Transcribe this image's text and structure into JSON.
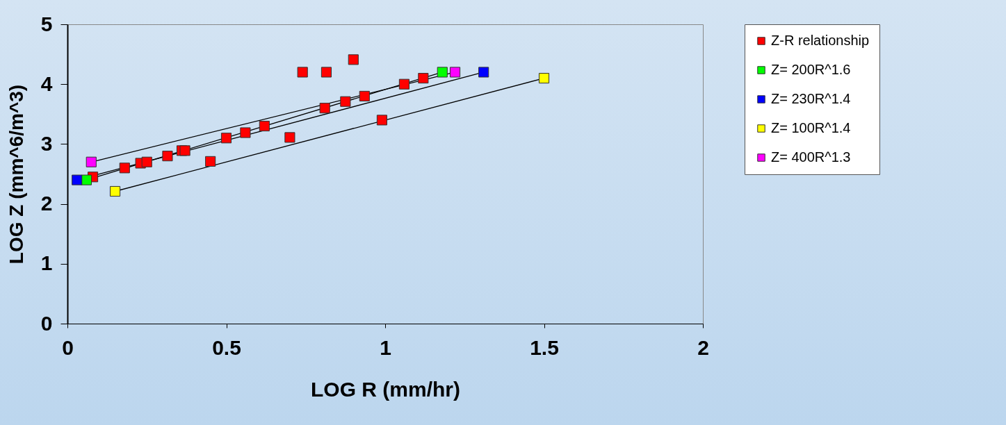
{
  "chart_data": {
    "type": "scatter",
    "xlabel": "LOG R  (mm/hr)",
    "ylabel": "LOG Z (mm^6/m^3)",
    "xlim": [
      0,
      2
    ],
    "xticks": [
      {
        "value": 0,
        "label": "0"
      },
      0.5,
      {
        "value": 1,
        "label": "1"
      },
      1.5,
      {
        "value": 2,
        "label": "2"
      }
    ],
    "ylim": [
      0,
      5
    ],
    "yticks": [
      {
        "value": 0,
        "label": "0"
      },
      {
        "value": 1,
        "label": "1"
      },
      {
        "value": 2,
        "label": "2"
      },
      {
        "value": 3,
        "label": "3"
      },
      {
        "value": 4,
        "label": "4"
      },
      {
        "value": 5,
        "label": "5"
      }
    ],
    "grid": false,
    "legend": "right",
    "marker": "square",
    "series": [
      {
        "name": "Z-R relationship",
        "color": "#ff0000",
        "x": [
          0.08,
          0.18,
          0.23,
          0.25,
          0.315,
          0.36,
          0.37,
          0.45,
          0.5,
          0.56,
          0.62,
          0.7,
          0.74,
          0.81,
          0.815,
          0.875,
          0.9,
          0.935,
          0.99,
          1.06,
          1.12
        ],
        "values": [
          2.45,
          2.6,
          2.68,
          2.7,
          2.8,
          2.89,
          2.89,
          2.71,
          3.1,
          3.19,
          3.3,
          3.11,
          4.2,
          3.6,
          4.2,
          3.71,
          4.41,
          3.8,
          3.4,
          4.0,
          4.1
        ]
      },
      {
        "name": "Z= 200R^1.6",
        "type": "line",
        "color": "#00ff00",
        "x": [
          0.06,
          1.18
        ],
        "values": [
          2.4,
          4.2
        ]
      },
      {
        "name": "Z= 230R^1.4",
        "type": "line",
        "color": "#0000ff",
        "x": [
          0.03,
          1.31
        ],
        "values": [
          2.4,
          4.2
        ]
      },
      {
        "name": "Z= 100R^1.4",
        "type": "line",
        "color": "#ffff00",
        "x": [
          0.15,
          1.5
        ],
        "values": [
          2.21,
          4.1
        ]
      },
      {
        "name": "Z= 400R^1.3",
        "type": "line",
        "color": "#ff00ff",
        "x": [
          0.075,
          1.22
        ],
        "values": [
          2.7,
          4.2
        ]
      }
    ]
  }
}
